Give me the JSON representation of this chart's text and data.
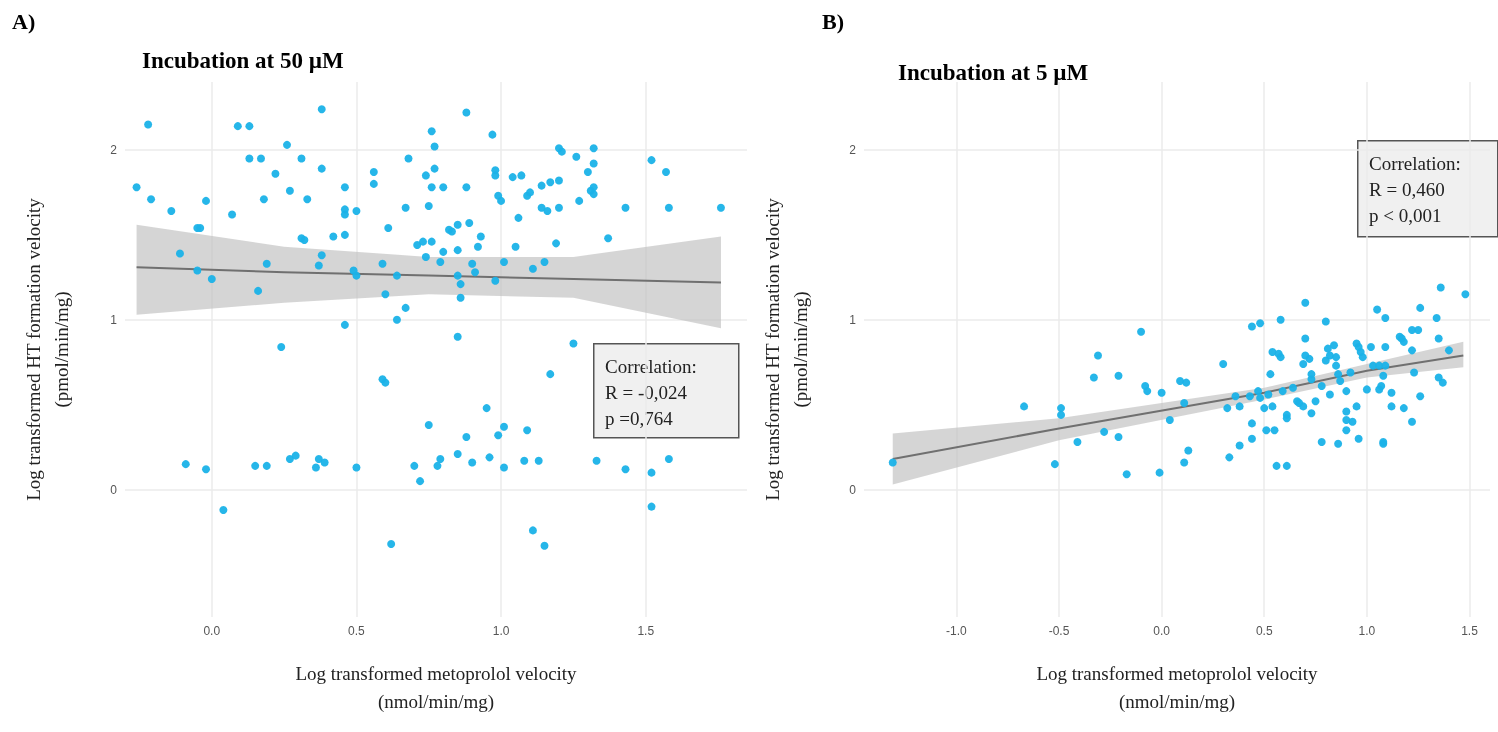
{
  "chart_data": [
    {
      "type": "scatter",
      "title": "Incubation at 50 µM",
      "xlabel": "Log transformed metoprolol velocity\n(nmol/min/mg)",
      "ylabel": "Log transformed HT formation velocity\n(pmol/min/mg)",
      "annotations": [
        "A)",
        "Correlation:",
        "R = -0,024",
        "p =0,764"
      ],
      "xlim": [
        -0.3,
        1.85
      ],
      "ylim": [
        -0.75,
        2.4
      ],
      "xticks": [
        {
          "value": 0,
          "label": "0.0"
        },
        {
          "value": 0.5,
          "label": "0.5"
        },
        {
          "value": 1,
          "label": "1.0"
        },
        {
          "value": 1.5,
          "label": "1.5"
        }
      ],
      "yticks": [
        0,
        1,
        2
      ],
      "grid": true,
      "series": [
        {
          "marker": "circle",
          "color": "#1ab2e8",
          "x": [
            -0.26,
            -0.22,
            -0.21,
            -0.14,
            -0.11,
            -0.09,
            -0.05,
            -0.04,
            -0.05,
            -0.02,
            -0.02,
            0.0,
            0.04,
            0.07,
            0.09,
            0.13,
            0.13,
            0.17,
            0.15,
            0.16,
            0.18,
            0.19,
            0.19,
            0.22,
            0.24,
            0.26,
            0.27,
            0.29,
            0.27,
            0.31,
            0.31,
            0.32,
            0.33,
            0.36,
            0.37,
            0.39,
            0.37,
            0.38,
            0.38,
            0.38,
            0.42,
            0.46,
            0.46,
            0.46,
            0.5,
            0.46,
            0.46,
            0.49,
            0.5,
            0.5,
            0.56,
            0.56,
            0.59,
            0.59,
            0.6,
            0.6,
            0.61,
            0.62,
            0.64,
            0.64,
            0.67,
            0.67,
            0.68,
            0.7,
            0.71,
            0.72,
            0.73,
            0.76,
            0.74,
            0.74,
            0.75,
            0.75,
            0.76,
            0.76,
            0.77,
            0.77,
            0.78,
            0.79,
            0.79,
            0.8,
            0.8,
            0.88,
            0.88,
            0.82,
            0.83,
            0.85,
            0.89,
            0.85,
            0.85,
            0.86,
            0.86,
            0.85,
            0.85,
            0.88,
            0.9,
            0.9,
            0.91,
            0.92,
            0.93,
            0.95,
            0.96,
            0.97,
            0.98,
            0.98,
            0.98,
            0.99,
            1.0,
            0.99,
            1.01,
            1.01,
            1.01,
            1.04,
            1.07,
            1.05,
            1.06,
            1.08,
            1.09,
            1.09,
            1.1,
            1.11,
            1.11,
            1.13,
            1.14,
            1.16,
            1.14,
            1.15,
            1.15,
            1.17,
            1.17,
            1.19,
            1.2,
            1.2,
            1.2,
            1.21,
            1.25,
            1.26,
            1.27,
            1.3,
            1.32,
            1.32,
            1.31,
            1.32,
            1.32,
            1.33,
            1.37,
            1.43,
            1.43,
            1.52,
            1.52,
            1.52,
            1.57,
            1.58,
            1.58,
            1.76
          ],
          "values": [
            1.78,
            2.15,
            1.71,
            1.64,
            1.39,
            0.15,
            1.54,
            1.54,
            1.29,
            0.12,
            1.7,
            1.24,
            -0.12,
            1.62,
            2.14,
            2.14,
            1.95,
            1.95,
            0.14,
            1.17,
            1.71,
            1.33,
            0.14,
            1.86,
            0.84,
            2.03,
            0.18,
            0.2,
            1.76,
            1.95,
            1.48,
            1.47,
            1.71,
            0.13,
            0.18,
            0.16,
            1.32,
            2.24,
            1.38,
            1.89,
            1.49,
            1.78,
            1.62,
            1.65,
            1.64,
            1.5,
            0.97,
            1.29,
            1.26,
            0.13,
            1.8,
            1.87,
            1.33,
            0.65,
            0.63,
            1.15,
            1.54,
            -0.32,
            1.26,
            1.0,
            1.66,
            1.07,
            1.95,
            0.14,
            1.44,
            0.05,
            1.46,
            1.46,
            1.37,
            1.85,
            1.67,
            0.38,
            2.11,
            1.78,
            2.02,
            1.89,
            0.14,
            0.18,
            1.34,
            1.78,
            1.4,
            2.22,
            1.78,
            1.53,
            1.52,
            1.56,
            1.57,
            1.41,
            1.26,
            1.21,
            1.13,
            0.9,
            0.21,
            0.31,
            0.16,
            1.33,
            1.28,
            1.43,
            1.49,
            0.48,
            0.19,
            2.09,
            1.23,
            1.88,
            1.85,
            1.73,
            1.7,
            0.32,
            0.37,
            1.34,
            0.13,
            1.84,
            1.85,
            1.43,
            1.6,
            0.17,
            0.35,
            1.73,
            1.75,
            1.3,
            -0.24,
            0.17,
            1.66,
            1.64,
            1.79,
            1.34,
            -0.33,
            1.81,
            0.68,
            1.45,
            1.82,
            1.66,
            2.01,
            1.99,
            0.86,
            1.96,
            1.7,
            1.87,
            1.92,
            2.01,
            1.76,
            1.78,
            1.74,
            0.17,
            1.48,
            1.66,
            0.12,
            1.94,
            0.1,
            -0.1,
            1.87,
            1.66,
            0.18,
            1.66
          ]
        },
        {
          "type": "line",
          "marker": "none",
          "color": "#707070",
          "x": [
            -0.26,
            0.25,
            0.75,
            1.25,
            1.76
          ],
          "values": [
            1.31,
            1.28,
            1.26,
            1.24,
            1.22
          ],
          "lower": [
            1.03,
            1.1,
            1.15,
            1.13,
            0.95
          ],
          "upper": [
            1.56,
            1.43,
            1.37,
            1.37,
            1.49
          ]
        }
      ]
    },
    {
      "type": "scatter",
      "title": "Incubation at 5 µM",
      "xlabel": "Log transformed metoprolol velocity\n(nmol/min/mg)",
      "ylabel": "Log transformed HT formation velocity\n(pmol/min/mg)",
      "annotations": [
        "B)",
        "Correlation:",
        "R = 0,460",
        "p < 0,001"
      ],
      "xlim": [
        -1.45,
        1.6
      ],
      "ylim": [
        -0.75,
        2.4
      ],
      "xticks": [
        {
          "value": -1,
          "label": "-1.0"
        },
        {
          "value": -0.5,
          "label": "-0.5"
        },
        {
          "value": 0,
          "label": "0.0"
        },
        {
          "value": 0.5,
          "label": "0.5"
        },
        {
          "value": 1,
          "label": "1.0"
        },
        {
          "value": 1.5,
          "label": "1.5"
        }
      ],
      "yticks": [
        0,
        1,
        2
      ],
      "grid": true,
      "series": [
        {
          "marker": "circle",
          "color": "#1ab2e8",
          "x": [
            -1.31,
            -0.67,
            -0.52,
            -0.49,
            -0.49,
            -0.41,
            -0.33,
            -0.31,
            -0.28,
            -0.21,
            -0.21,
            -0.17,
            -0.1,
            -0.08,
            -0.07,
            -0.01,
            0.0,
            0.04,
            0.09,
            0.12,
            0.11,
            0.11,
            0.13,
            0.3,
            0.32,
            0.33,
            0.36,
            0.38,
            0.38,
            0.43,
            0.44,
            0.44,
            0.44,
            0.47,
            0.48,
            0.48,
            0.5,
            0.51,
            0.52,
            0.53,
            0.54,
            0.54,
            0.55,
            0.56,
            0.61,
            0.57,
            0.58,
            0.58,
            0.59,
            0.61,
            0.61,
            0.64,
            0.66,
            0.67,
            0.69,
            0.69,
            0.7,
            0.7,
            0.7,
            0.72,
            0.73,
            0.73,
            0.73,
            0.75,
            0.78,
            0.78,
            0.8,
            0.8,
            0.81,
            0.84,
            0.82,
            0.82,
            0.85,
            0.85,
            0.86,
            0.86,
            0.87,
            0.9,
            0.9,
            0.9,
            0.9,
            0.92,
            0.93,
            0.95,
            0.95,
            0.96,
            0.97,
            0.98,
            0.96,
            1.0,
            1.02,
            1.03,
            1.06,
            1.09,
            1.05,
            1.06,
            1.07,
            1.08,
            1.08,
            1.08,
            1.09,
            1.09,
            1.12,
            1.12,
            1.16,
            1.17,
            1.18,
            1.18,
            1.22,
            1.25,
            1.22,
            1.23,
            1.22,
            1.26,
            1.26,
            1.34,
            1.35,
            1.35,
            1.37,
            1.36,
            1.4,
            1.48
          ],
          "values": [
            0.16,
            0.49,
            0.15,
            0.48,
            0.44,
            0.28,
            0.66,
            0.79,
            0.34,
            0.67,
            0.31,
            0.09,
            0.93,
            0.61,
            0.58,
            0.1,
            0.57,
            0.41,
            0.64,
            0.63,
            0.51,
            0.16,
            0.23,
            0.74,
            0.48,
            0.19,
            0.55,
            0.26,
            0.49,
            0.55,
            0.39,
            0.3,
            0.96,
            0.58,
            0.54,
            0.98,
            0.48,
            0.35,
            0.56,
            0.68,
            0.49,
            0.81,
            0.35,
            0.14,
            0.14,
            0.8,
            0.78,
            1.0,
            0.58,
            0.44,
            0.42,
            0.6,
            0.52,
            0.51,
            0.74,
            0.49,
            0.89,
            1.1,
            0.79,
            0.77,
            0.65,
            0.68,
            0.45,
            0.52,
            0.28,
            0.61,
            0.76,
            0.99,
            0.83,
            0.85,
            0.56,
            0.79,
            0.78,
            0.73,
            0.27,
            0.68,
            0.64,
            0.46,
            0.41,
            0.35,
            0.58,
            0.69,
            0.4,
            0.49,
            0.86,
            0.84,
            0.81,
            0.78,
            0.3,
            0.59,
            0.84,
            0.73,
            0.73,
            0.73,
            1.06,
            0.59,
            0.61,
            0.67,
            0.27,
            0.28,
            1.01,
            0.84,
            0.57,
            0.49,
            0.9,
            0.89,
            0.87,
            0.48,
            0.94,
            0.94,
            0.82,
            0.69,
            0.4,
            1.07,
            0.55,
            1.01,
            0.89,
            0.66,
            0.63,
            1.19,
            0.82,
            1.15
          ]
        },
        {
          "type": "line",
          "marker": "none",
          "color": "#707070",
          "x": [
            -1.31,
            -0.5,
            0.5,
            1.0,
            1.47
          ],
          "values": [
            0.18,
            0.36,
            0.57,
            0.7,
            0.79
          ],
          "lower": [
            0.03,
            0.29,
            0.53,
            0.66,
            0.72
          ],
          "upper": [
            0.33,
            0.42,
            0.6,
            0.74,
            0.87
          ]
        }
      ]
    }
  ]
}
